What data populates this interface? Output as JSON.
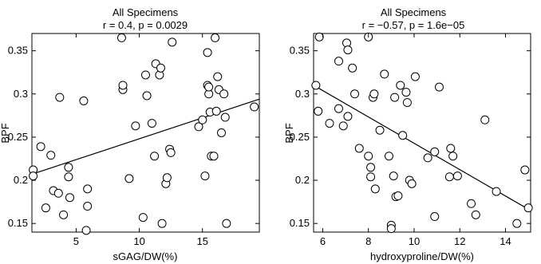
{
  "chart_data": [
    {
      "type": "scatter",
      "title": "All Specimens",
      "subtitle": "r = 0.4, p = 0.0029",
      "xlabel": "sGAG/DW(%)",
      "ylabel": "BPF",
      "xlim": [
        1.5,
        19.5
      ],
      "ylim": [
        0.14,
        0.37
      ],
      "xticks": [
        5,
        10,
        15
      ],
      "xtick_labels": [
        "5",
        "10",
        "15"
      ],
      "yticks": [
        0.15,
        0.2,
        0.25,
        0.3,
        0.35
      ],
      "ytick_labels": [
        "0.15",
        "0.2",
        "0.25",
        "0.3",
        "0.35"
      ],
      "fit_line": [
        [
          1.5,
          0.207
        ],
        [
          19.5,
          0.294
        ]
      ],
      "points": [
        [
          1.6,
          0.212
        ],
        [
          1.6,
          0.205
        ],
        [
          2.2,
          0.239
        ],
        [
          2.6,
          0.168
        ],
        [
          3.0,
          0.229
        ],
        [
          3.2,
          0.188
        ],
        [
          3.6,
          0.185
        ],
        [
          3.7,
          0.296
        ],
        [
          4.0,
          0.16
        ],
        [
          4.4,
          0.215
        ],
        [
          4.4,
          0.204
        ],
        [
          4.5,
          0.18
        ],
        [
          5.6,
          0.292
        ],
        [
          5.8,
          0.142
        ],
        [
          5.9,
          0.17
        ],
        [
          5.9,
          0.19
        ],
        [
          8.6,
          0.365
        ],
        [
          8.7,
          0.305
        ],
        [
          8.7,
          0.31
        ],
        [
          9.2,
          0.202
        ],
        [
          9.7,
          0.263
        ],
        [
          10.3,
          0.157
        ],
        [
          10.5,
          0.322
        ],
        [
          10.6,
          0.298
        ],
        [
          11.0,
          0.266
        ],
        [
          11.2,
          0.228
        ],
        [
          11.3,
          0.335
        ],
        [
          11.6,
          0.322
        ],
        [
          11.7,
          0.33
        ],
        [
          11.8,
          0.15
        ],
        [
          12.1,
          0.196
        ],
        [
          12.2,
          0.203
        ],
        [
          12.4,
          0.236
        ],
        [
          12.5,
          0.232
        ],
        [
          12.6,
          0.36
        ],
        [
          14.7,
          0.262
        ],
        [
          15.0,
          0.27
        ],
        [
          15.2,
          0.205
        ],
        [
          15.4,
          0.348
        ],
        [
          15.4,
          0.31
        ],
        [
          15.5,
          0.3
        ],
        [
          15.5,
          0.308
        ],
        [
          15.6,
          0.279
        ],
        [
          15.7,
          0.228
        ],
        [
          15.9,
          0.228
        ],
        [
          16.0,
          0.365
        ],
        [
          16.1,
          0.28
        ],
        [
          16.2,
          0.32
        ],
        [
          16.3,
          0.305
        ],
        [
          16.5,
          0.255
        ],
        [
          16.7,
          0.3
        ],
        [
          16.8,
          0.273
        ],
        [
          16.9,
          0.15
        ],
        [
          19.1,
          0.285
        ]
      ]
    },
    {
      "type": "scatter",
      "title": "All Specimens",
      "subtitle": "r = −0.57, p = 1.6e−05",
      "xlabel": "hydroxyproline/DW(%)",
      "ylabel": "BPF",
      "xlim": [
        5.6,
        15.1
      ],
      "ylim": [
        0.14,
        0.37
      ],
      "xticks": [
        6,
        8,
        10,
        12,
        14
      ],
      "xtick_labels": [
        "6",
        "8",
        "10",
        "12",
        "14"
      ],
      "yticks": [
        0.15,
        0.2,
        0.25,
        0.3,
        0.35
      ],
      "ytick_labels": [
        "0.15",
        "0.2",
        "0.25",
        "0.3",
        "0.35"
      ],
      "fit_line": [
        [
          5.6,
          0.31
        ],
        [
          15.1,
          0.165
        ]
      ],
      "points": [
        [
          5.7,
          0.31
        ],
        [
          5.8,
          0.28
        ],
        [
          5.85,
          0.366
        ],
        [
          6.3,
          0.266
        ],
        [
          6.7,
          0.338
        ],
        [
          6.7,
          0.283
        ],
        [
          6.9,
          0.263
        ],
        [
          7.05,
          0.359
        ],
        [
          7.1,
          0.351
        ],
        [
          7.1,
          0.274
        ],
        [
          7.3,
          0.33
        ],
        [
          7.4,
          0.3
        ],
        [
          7.6,
          0.237
        ],
        [
          8.0,
          0.366
        ],
        [
          8.0,
          0.228
        ],
        [
          8.1,
          0.215
        ],
        [
          8.1,
          0.204
        ],
        [
          8.2,
          0.296
        ],
        [
          8.25,
          0.3
        ],
        [
          8.3,
          0.19
        ],
        [
          8.5,
          0.258
        ],
        [
          8.7,
          0.323
        ],
        [
          8.9,
          0.228
        ],
        [
          9.0,
          0.148
        ],
        [
          9.0,
          0.144
        ],
        [
          9.1,
          0.205
        ],
        [
          9.15,
          0.296
        ],
        [
          9.2,
          0.181
        ],
        [
          9.3,
          0.182
        ],
        [
          9.4,
          0.31
        ],
        [
          9.5,
          0.252
        ],
        [
          9.65,
          0.302
        ],
        [
          9.7,
          0.29
        ],
        [
          9.8,
          0.2
        ],
        [
          9.9,
          0.196
        ],
        [
          10.05,
          0.32
        ],
        [
          10.6,
          0.226
        ],
        [
          10.9,
          0.158
        ],
        [
          10.9,
          0.233
        ],
        [
          11.1,
          0.308
        ],
        [
          11.55,
          0.204
        ],
        [
          11.6,
          0.237
        ],
        [
          11.7,
          0.228
        ],
        [
          11.9,
          0.205
        ],
        [
          12.5,
          0.173
        ],
        [
          12.7,
          0.16
        ],
        [
          13.1,
          0.27
        ],
        [
          13.6,
          0.187
        ],
        [
          14.5,
          0.15
        ],
        [
          14.85,
          0.212
        ],
        [
          15.0,
          0.168
        ]
      ]
    }
  ]
}
